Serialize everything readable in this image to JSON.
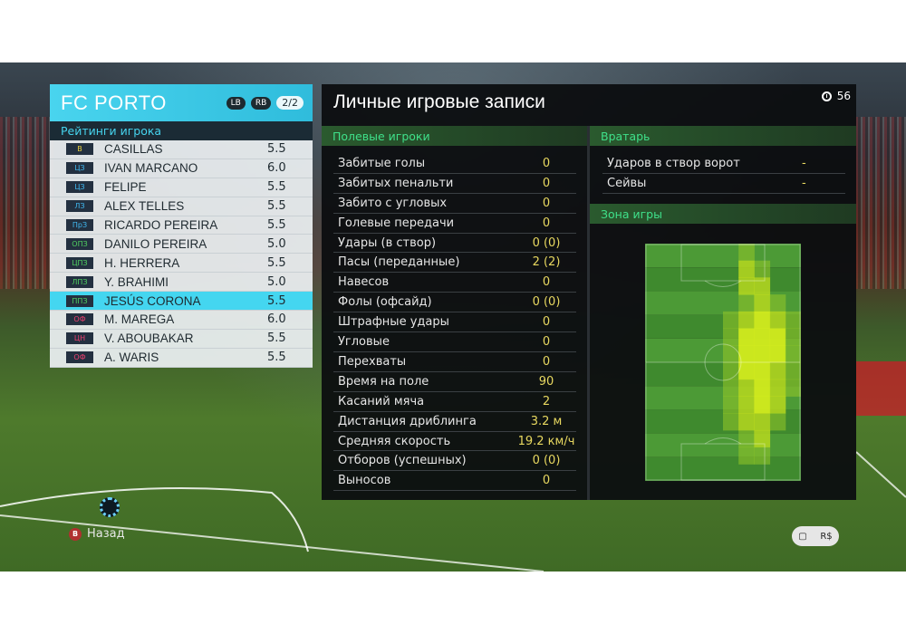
{
  "team": {
    "name": "FC PORTO",
    "lb": "LB",
    "rb": "RB",
    "page": "2/2",
    "ratings_title": "Рейтинги игрока",
    "players": [
      {
        "pos": "В",
        "pos_color": "#e8d040",
        "name": "CASILLAS",
        "rating": "5.5"
      },
      {
        "pos": "ЦЗ",
        "pos_color": "#40b8f0",
        "name": "IVAN MARCANO",
        "rating": "6.0"
      },
      {
        "pos": "ЦЗ",
        "pos_color": "#40b8f0",
        "name": "FELIPE",
        "rating": "5.5"
      },
      {
        "pos": "ЛЗ",
        "pos_color": "#40b8f0",
        "name": "ALEX TELLES",
        "rating": "5.5"
      },
      {
        "pos": "ПрЗ",
        "pos_color": "#40b8f0",
        "name": "RICARDO PEREIRA",
        "rating": "5.5"
      },
      {
        "pos": "ОПЗ",
        "pos_color": "#50d060",
        "name": "DANILO PEREIRA",
        "rating": "5.0"
      },
      {
        "pos": "ЦПЗ",
        "pos_color": "#50d060",
        "name": "H. HERRERA",
        "rating": "5.5"
      },
      {
        "pos": "ЛПЗ",
        "pos_color": "#50d060",
        "name": "Y. BRAHIMI",
        "rating": "5.0"
      },
      {
        "pos": "ППЗ",
        "pos_color": "#50d060",
        "name": "JESÚS CORONA",
        "rating": "5.5"
      },
      {
        "pos": "ОФ",
        "pos_color": "#f04070",
        "name": "M. MAREGA",
        "rating": "6.0"
      },
      {
        "pos": "ЦН",
        "pos_color": "#f04070",
        "name": "V. ABOUBAKAR",
        "rating": "5.5"
      },
      {
        "pos": "ОФ",
        "pos_color": "#f04070",
        "name": "A. WARIS",
        "rating": "5.5"
      }
    ],
    "selected_index": 8
  },
  "records": {
    "title": "Личные игровые записи",
    "timer": "56",
    "outfield_title": "Полевые игроки",
    "outfield_stats": [
      {
        "label": "Забитые голы",
        "value": "0"
      },
      {
        "label": "Забитых пенальти",
        "value": "0"
      },
      {
        "label": "Забито с угловых",
        "value": "0"
      },
      {
        "label": "Голевые передачи",
        "value": "0"
      },
      {
        "label": "Удары (в створ)",
        "value": "0 (0)"
      },
      {
        "label": "Пасы (переданные)",
        "value": "2 (2)"
      },
      {
        "label": "Навесов",
        "value": "0"
      },
      {
        "label": "Фолы (офсайд)",
        "value": "0 (0)"
      },
      {
        "label": "Штрафные удары",
        "value": "0"
      },
      {
        "label": "Угловые",
        "value": "0"
      },
      {
        "label": "Перехваты",
        "value": "0"
      },
      {
        "label": "Время на поле",
        "value": "90"
      },
      {
        "label": "Касаний мяча",
        "value": "2"
      },
      {
        "label": "Дистанция дриблинга",
        "value": "3.2 м"
      },
      {
        "label": "Средняя скорость",
        "value": "19.2 км/ч"
      },
      {
        "label": "Отборов (успешных)",
        "value": "0 (0)"
      },
      {
        "label": "Выносов",
        "value": "0"
      }
    ],
    "gk_title": "Вратарь",
    "gk_stats": [
      {
        "label": "Ударов в створ ворот",
        "value": "-"
      },
      {
        "label": "Сейвы",
        "value": "-"
      }
    ],
    "zone_title": "Зона игры"
  },
  "footer": {
    "back_button_glyph": "B",
    "back_label": "Назад",
    "chat_icon": "chat-icon",
    "rs_label": "R$"
  }
}
